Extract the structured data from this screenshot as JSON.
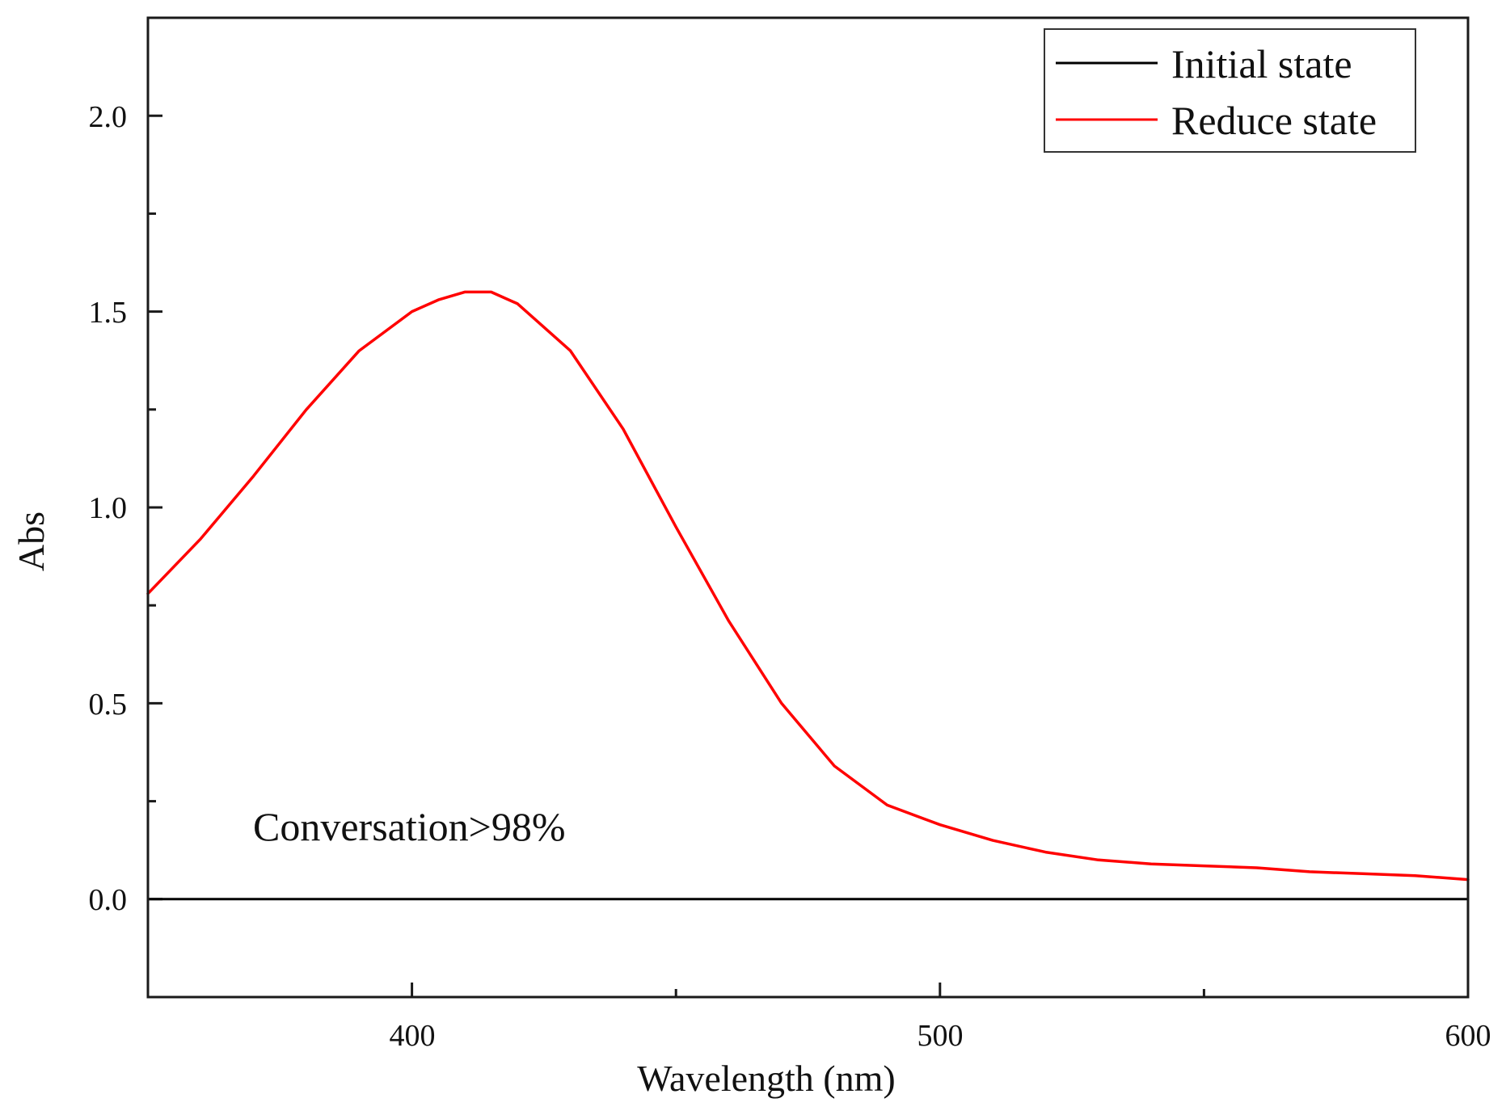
{
  "chart_data": {
    "type": "line",
    "title": "",
    "xlabel": "Wavelength (nm)",
    "ylabel": "Abs",
    "xlim": [
      350,
      600
    ],
    "ylim": [
      -0.25,
      2.25
    ],
    "x_ticks": [
      400,
      500,
      600
    ],
    "x_tick_labels": [
      "400",
      "500",
      "600"
    ],
    "x_minor_ticks": [
      350,
      450,
      550
    ],
    "y_ticks": [
      0.0,
      0.5,
      1.0,
      1.5,
      2.0
    ],
    "y_tick_labels": [
      "0.0",
      "0.5",
      "1.0",
      "1.5",
      "2.0"
    ],
    "y_minor_ticks": [
      -0.25,
      0.25,
      0.75,
      1.25,
      1.75
    ],
    "grid": false,
    "legend_position": "top-right",
    "annotation": "Conversation>98%",
    "series": [
      {
        "name": "Initial state",
        "color": "#000000",
        "x": [
          350,
          400,
          450,
          500,
          550,
          600
        ],
        "y": [
          0.0,
          0.0,
          0.0,
          0.0,
          0.0,
          0.0
        ]
      },
      {
        "name": "Reduce state",
        "color": "#ff0000",
        "x": [
          350,
          360,
          370,
          380,
          390,
          400,
          405,
          410,
          415,
          420,
          430,
          440,
          450,
          460,
          470,
          480,
          490,
          500,
          510,
          520,
          530,
          540,
          550,
          560,
          570,
          580,
          590,
          600
        ],
        "y": [
          0.78,
          0.92,
          1.08,
          1.25,
          1.4,
          1.5,
          1.53,
          1.55,
          1.55,
          1.52,
          1.4,
          1.2,
          0.95,
          0.71,
          0.5,
          0.34,
          0.24,
          0.19,
          0.15,
          0.12,
          0.1,
          0.09,
          0.085,
          0.08,
          0.07,
          0.065,
          0.06,
          0.05
        ]
      }
    ]
  }
}
